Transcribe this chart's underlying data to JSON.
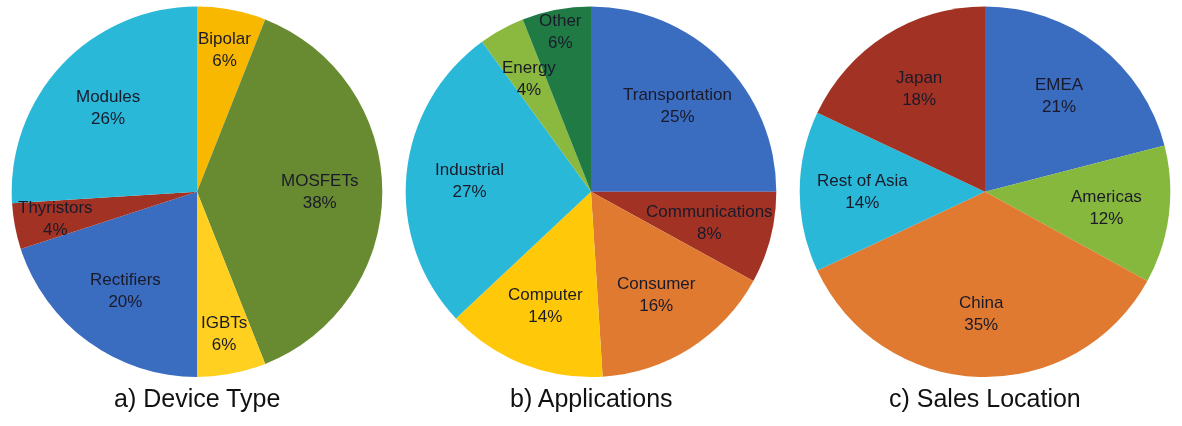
{
  "chart_data": [
    {
      "type": "pie",
      "title": "a) Device Type",
      "categories": [
        "Bipolar",
        "MOSFETs",
        "IGBTs",
        "Rectifiers",
        "Thyristors",
        "Modules"
      ],
      "values": [
        6,
        38,
        6,
        20,
        4,
        26
      ],
      "value_labels": [
        "6%",
        "38%",
        "6%",
        "20%",
        "4%",
        "26%"
      ],
      "colors": [
        "#f8b800",
        "#688b32",
        "#ffd020",
        "#3a6cc0",
        "#a23324",
        "#2ab8d8"
      ]
    },
    {
      "type": "pie",
      "title": "b) Applications",
      "categories": [
        "Transportation",
        "Communications",
        "Consumer",
        "Computer",
        "Industrial",
        "Energy",
        "Other"
      ],
      "values": [
        25,
        8,
        16,
        14,
        27,
        4,
        6
      ],
      "value_labels": [
        "25%",
        "8%",
        "16%",
        "14%",
        "27%",
        "4%",
        "6%"
      ],
      "colors": [
        "#3a6cc0",
        "#a23324",
        "#e07a30",
        "#ffc808",
        "#2ab8d8",
        "#8bb83e",
        "#1f7a44"
      ]
    },
    {
      "type": "pie",
      "title": "c) Sales Location",
      "categories": [
        "EMEA",
        "Americas",
        "China",
        "Rest of Asia",
        "Japan"
      ],
      "values": [
        21,
        12,
        35,
        14,
        18
      ],
      "value_labels": [
        "21%",
        "12%",
        "35%",
        "14%",
        "18%"
      ],
      "colors": [
        "#3a6cc0",
        "#86b83e",
        "#e07a30",
        "#2ab8d8",
        "#a23324"
      ]
    }
  ]
}
